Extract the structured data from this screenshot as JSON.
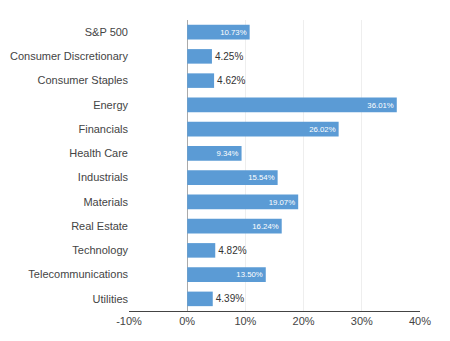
{
  "chart_data": {
    "type": "bar",
    "orientation": "horizontal",
    "categories": [
      "S&P 500",
      "Consumer Discretionary",
      "Consumer Staples",
      "Energy",
      "Financials",
      "Health Care",
      "Industrials",
      "Materials",
      "Real Estate",
      "Technology",
      "Telecommunications",
      "Utilities"
    ],
    "values": [
      10.73,
      4.25,
      4.62,
      36.01,
      26.02,
      9.34,
      15.54,
      19.07,
      16.24,
      4.82,
      13.5,
      4.39
    ],
    "value_labels": [
      "10.73%",
      "4.25%",
      "4.62%",
      "36.01%",
      "26.02%",
      "9.34%",
      "15.54%",
      "19.07%",
      "16.24%",
      "4.82%",
      "13.50%",
      "4.39%"
    ],
    "data_labels": true,
    "color": "#5b9bd5",
    "xlim": [
      -10,
      40
    ],
    "xticks": [
      {
        "value": -10,
        "label": "-10%"
      },
      {
        "value": 0,
        "label": "0%"
      },
      {
        "value": 10,
        "label": "10%"
      },
      {
        "value": 20,
        "label": "20%"
      },
      {
        "value": 30,
        "label": "30%"
      },
      {
        "value": 40,
        "label": "40%"
      }
    ],
    "grid": true
  }
}
